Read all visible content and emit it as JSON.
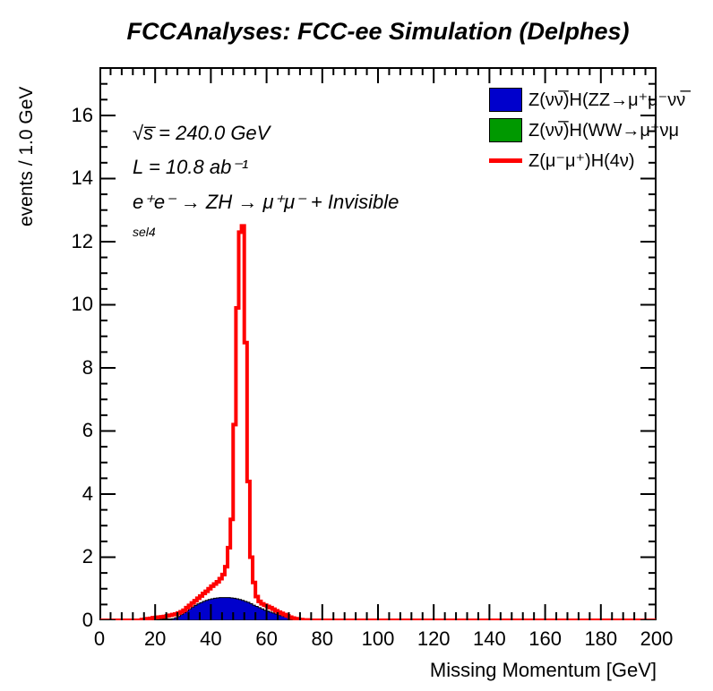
{
  "title": "FCCAnalyses: FCC-ee Simulation (Delphes)",
  "annotations": {
    "energy": "√s̅ = 240.0 GeV",
    "luminosity": "L = 10.8 ab⁻¹",
    "process": "e⁺e⁻ → ZH → μ⁺μ⁻ + Invisible",
    "selection": "sel4"
  },
  "legend": [
    {
      "label": "Z(νν̅)H(ZZ→μ⁺μ⁻νν̅",
      "swatch": "filled",
      "color": "#0000cc"
    },
    {
      "label": "Z(νν̅)H(WW→μ⁺νμ",
      "swatch": "filled",
      "color": "#009900"
    },
    {
      "label": "Z(μ⁻μ⁺)H(4ν)",
      "swatch": "line",
      "color": "#ff0000"
    }
  ],
  "axes": {
    "x": {
      "title": "Missing Momentum [GeV]",
      "min": 0,
      "max": 200,
      "major_ticks": [
        0,
        20,
        40,
        60,
        80,
        100,
        120,
        140,
        160,
        180,
        200
      ],
      "minor_step": 4
    },
    "y": {
      "title": "events / 1.0 GeV",
      "min": 0,
      "max": 17.53,
      "major_ticks": [
        0,
        2,
        4,
        6,
        8,
        10,
        12,
        14,
        16
      ],
      "minor_step": 0.5
    }
  },
  "colors": {
    "background": "#ffffff",
    "frame_line": "#000000",
    "signal_red": "#ff0000",
    "zz_blue": "#0000cc",
    "ww_green": "#009900"
  },
  "chart_data": {
    "type": "bar",
    "histogram": true,
    "bin_width": 1,
    "title": "FCCAnalyses: FCC-ee Simulation (Delphes)",
    "xlabel": "Missing Momentum [GeV]",
    "ylabel": "events / 1.0 GeV",
    "xlim": [
      0,
      200
    ],
    "ylim": [
      0,
      17.53
    ],
    "grid": false,
    "legend_position": "top-right",
    "series": [
      {
        "name": "Z(νν̅)H(ZZ→μ⁺μ⁻νν̅)",
        "style": "filled",
        "color": "#0000cc",
        "line_color": "#000000",
        "first_bin": 25,
        "values": [
          0.02,
          0.05,
          0.08,
          0.12,
          0.18,
          0.24,
          0.3,
          0.36,
          0.42,
          0.47,
          0.52,
          0.56,
          0.6,
          0.63,
          0.66,
          0.68,
          0.7,
          0.71,
          0.72,
          0.72,
          0.72,
          0.72,
          0.71,
          0.7,
          0.68,
          0.66,
          0.63,
          0.6,
          0.57,
          0.53,
          0.48,
          0.44,
          0.4,
          0.36,
          0.32,
          0.29,
          0.26,
          0.23,
          0.2,
          0.17,
          0.14,
          0.12,
          0.1,
          0.08,
          0.06,
          0.05,
          0.04,
          0.03,
          0.02,
          0.01,
          0.01
        ]
      },
      {
        "name": "Z(νν̅)H(WW→μ⁺νμ⁻ν̅)",
        "style": "filled",
        "color": "#009900",
        "line_color": "#000000",
        "first_bin": 0,
        "values": []
      },
      {
        "name": "Z(μ⁻μ⁺)H(4ν)",
        "style": "line",
        "color": "#ff0000",
        "line_width": 4,
        "first_bin": 15,
        "values": [
          0.02,
          0.03,
          0.05,
          0.06,
          0.08,
          0.09,
          0.1,
          0.11,
          0.12,
          0.14,
          0.16,
          0.18,
          0.2,
          0.23,
          0.27,
          0.32,
          0.4,
          0.47,
          0.55,
          0.62,
          0.7,
          0.77,
          0.85,
          0.92,
          1.0,
          1.08,
          1.15,
          1.22,
          1.32,
          1.45,
          1.7,
          2.3,
          3.2,
          6.2,
          9.9,
          12.3,
          12.5,
          8.8,
          4.4,
          2.0,
          1.2,
          0.75,
          0.6,
          0.52,
          0.48,
          0.44,
          0.4,
          0.35,
          0.3,
          0.26,
          0.22,
          0.18,
          0.14,
          0.1,
          0.07,
          0.05,
          0.03,
          0.02,
          0.01,
          0.01,
          0.0
        ]
      }
    ]
  }
}
